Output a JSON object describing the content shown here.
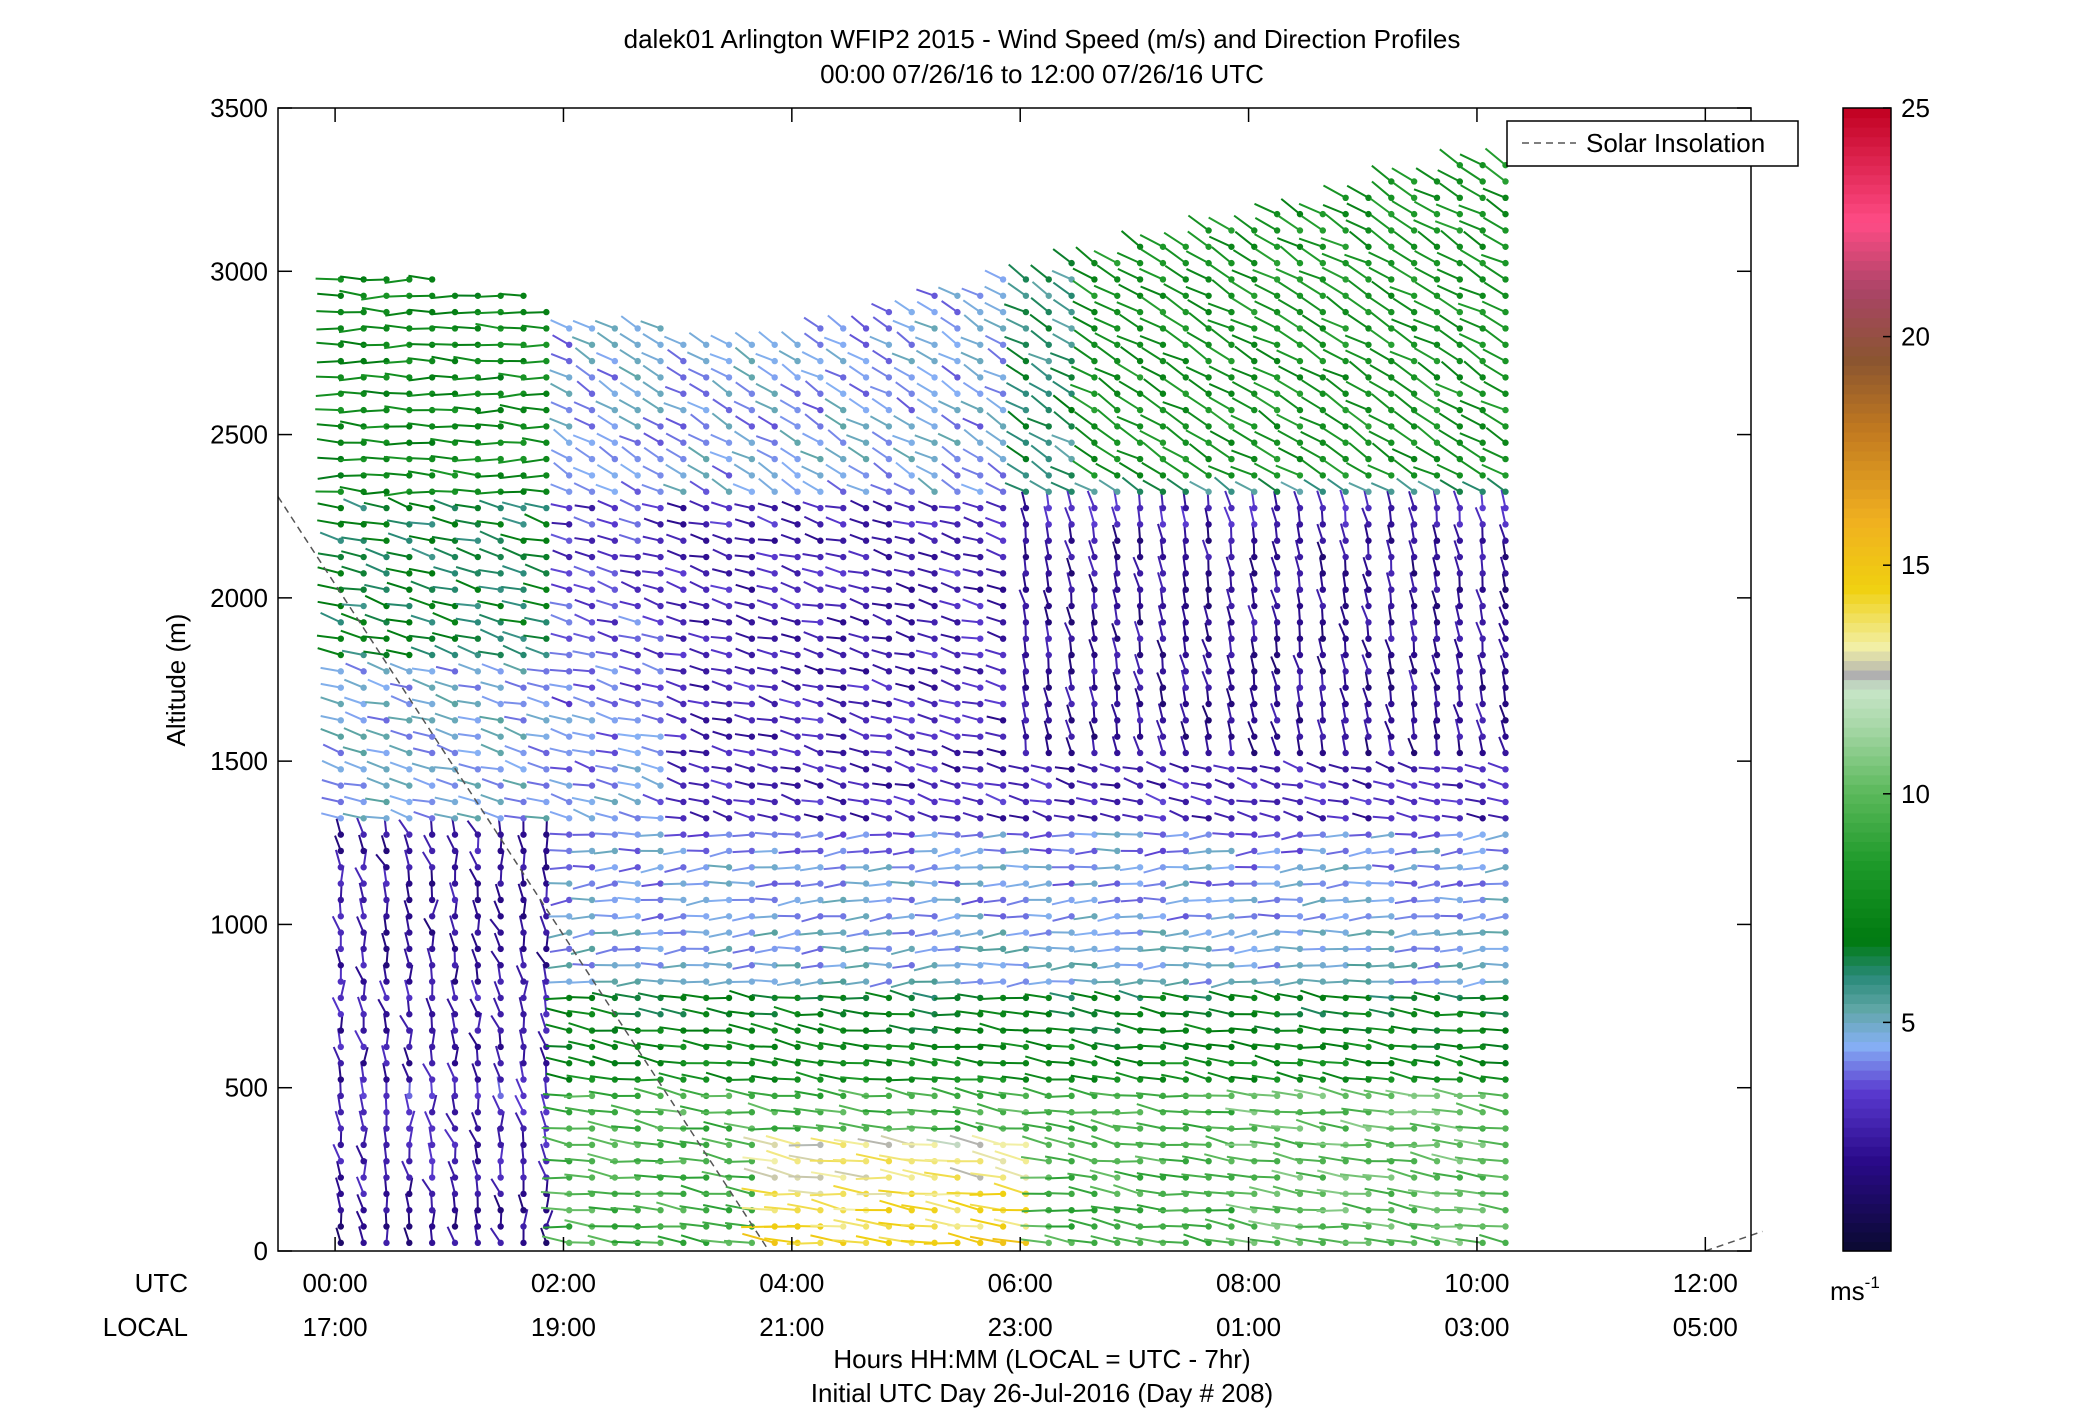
{
  "chart_data": {
    "type": "scatter",
    "title": "dalek01 Arlington WFIP2 2015 - Wind Speed (m/s) and Direction Profiles",
    "subtitle": "00:00 07/26/16 to 12:00 07/26/16  UTC",
    "xlabel": "Hours HH:MM  (LOCAL = UTC - 7hr)",
    "xlabel2": "Initial UTC Day 26-Jul-2016 (Day # 208)",
    "ylabel": "Altitude (m)",
    "xlim": [
      -0.5,
      12.4
    ],
    "ylim": [
      0,
      3500
    ],
    "yticks": [
      0,
      500,
      1000,
      1500,
      2000,
      2500,
      3000,
      3500
    ],
    "xrow_labels": {
      "utc": "UTC",
      "local": "LOCAL"
    },
    "xticks": [
      {
        "value": 0,
        "utc": "00:00",
        "local": "17:00"
      },
      {
        "value": 2,
        "utc": "02:00",
        "local": "19:00"
      },
      {
        "value": 4,
        "utc": "04:00",
        "local": "21:00"
      },
      {
        "value": 6,
        "utc": "06:00",
        "local": "23:00"
      },
      {
        "value": 8,
        "utc": "08:00",
        "local": "01:00"
      },
      {
        "value": 10,
        "utc": "10:00",
        "local": "03:00"
      },
      {
        "value": 12,
        "utc": "12:00",
        "local": "05:00"
      }
    ],
    "legend": {
      "label": "Solar Insolation",
      "position": "top-right"
    },
    "solar_insolation_line": {
      "x": [
        -0.5,
        3.8
      ],
      "y": [
        2310,
        0
      ]
    },
    "solar_insolation_line2": {
      "x": [
        12.0,
        12.5
      ],
      "y": [
        0,
        60
      ]
    },
    "colorbar": {
      "min": 0,
      "max": 25,
      "ticks": [
        5,
        10,
        15,
        20,
        25
      ],
      "unit_label": "ms",
      "unit_exp": "-1",
      "stops": [
        {
          "v": 0,
          "c": "#0a0a30"
        },
        {
          "v": 2,
          "c": "#2a0a8a"
        },
        {
          "v": 3.5,
          "c": "#5a3ad0"
        },
        {
          "v": 4.5,
          "c": "#86b0f5"
        },
        {
          "v": 5.3,
          "c": "#5fa6a6"
        },
        {
          "v": 6,
          "c": "#2a8a7a"
        },
        {
          "v": 6.8,
          "c": "#007a10"
        },
        {
          "v": 8.5,
          "c": "#1e9a2a"
        },
        {
          "v": 10,
          "c": "#5ab85a"
        },
        {
          "v": 11.5,
          "c": "#a9d8a9"
        },
        {
          "v": 12.3,
          "c": "#c8e6c8"
        },
        {
          "v": 12.6,
          "c": "#b0b0b0"
        },
        {
          "v": 13.2,
          "c": "#f2f0a8"
        },
        {
          "v": 14.5,
          "c": "#f0d010"
        },
        {
          "v": 16,
          "c": "#f0b020"
        },
        {
          "v": 18,
          "c": "#c07820"
        },
        {
          "v": 19.5,
          "c": "#8a5530"
        },
        {
          "v": 21,
          "c": "#aa4466"
        },
        {
          "v": 22.5,
          "c": "#ff4c86"
        },
        {
          "v": 25,
          "c": "#c00020"
        }
      ]
    },
    "wind_profile": {
      "time_start": 0.05,
      "time_step": 0.2,
      "time_count": 52,
      "alt_start": 25,
      "alt_step": 50,
      "alt_count": 70,
      "series": [
        {
          "x": [
            0.1,
            1.8,
            1.9,
            4.0,
            6.0,
            11.9
          ],
          "tops": [
            3000,
            2950,
            2850,
            2800,
            3000,
            3500
          ]
        }
      ],
      "speed_bands_ms": [
        {
          "label": "0-500 m, 00:00-02:00",
          "speed": 2.5
        },
        {
          "label": "0-500 m, 02:00-12:00",
          "speed": 9
        },
        {
          "label": "0-300 m, 04:00-06:00",
          "speed": 14.5
        },
        {
          "label": "500-800 m",
          "speed": 7.5
        },
        {
          "label": "800-1300 m",
          "speed": 4.5
        },
        {
          "label": "1300-2300 m",
          "speed": 3
        },
        {
          "label": "2300-3500 m, 00:00-02:00",
          "speed": 7.5
        },
        {
          "label": "2300-3500 m, 02:00-12:00",
          "speed": 5
        }
      ]
    }
  }
}
